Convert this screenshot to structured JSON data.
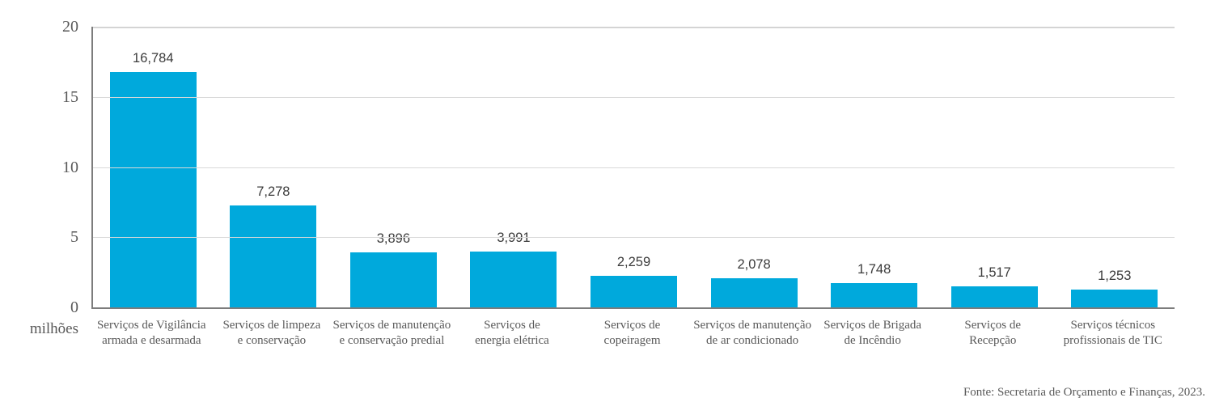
{
  "chart_data": {
    "type": "bar",
    "title": "",
    "xlabel": "",
    "ylabel": "milhões",
    "ylim": [
      0,
      20
    ],
    "yticks": [
      0,
      5,
      10,
      15,
      20
    ],
    "grid": true,
    "legend": false,
    "bar_color": "#00a9dc",
    "grid_color": "#d9d9d9",
    "axis_color": "#7d7d7d",
    "value_label_color": "#3b3b3b",
    "category_label_color": "#595959",
    "categories": [
      "Serviços de Vigilância armada e desarmada",
      "Serviços de limpeza e conservação",
      "Serviços de manutenção e conservação predial",
      "Serviços de energia elétrica",
      "Serviços de copeiragem",
      "Serviços de manutenção de ar condicionado",
      "Serviços de Brigada de Incêndio",
      "Serviços de Recepção",
      "Serviços técnicos profissionais de TIC"
    ],
    "category_lines": [
      [
        "Serviços de Vigilância",
        "armada e desarmada"
      ],
      [
        "Serviços de limpeza",
        "e conservação"
      ],
      [
        "Serviços de manutenção",
        "e conservação predial"
      ],
      [
        "Serviços de",
        "energia elétrica"
      ],
      [
        "Serviços de",
        "copeiragem"
      ],
      [
        "Serviços de manutenção",
        "de ar condicionado"
      ],
      [
        "Serviços de Brigada",
        "de Incêndio"
      ],
      [
        "Serviços de",
        "Recepção"
      ],
      [
        "Serviços técnicos",
        "profissionais de TIC"
      ]
    ],
    "values": [
      16.784,
      7.278,
      3.896,
      3.991,
      2.259,
      2.078,
      1.748,
      1.517,
      1.253
    ],
    "value_labels": [
      "16,784",
      "7,278",
      "3,896",
      "3,991",
      "2,259",
      "2,078",
      "1,748",
      "1,517",
      "1,253"
    ]
  },
  "footer": {
    "source": "Fonte: Secretaria de Orçamento e Finanças, 2023."
  }
}
